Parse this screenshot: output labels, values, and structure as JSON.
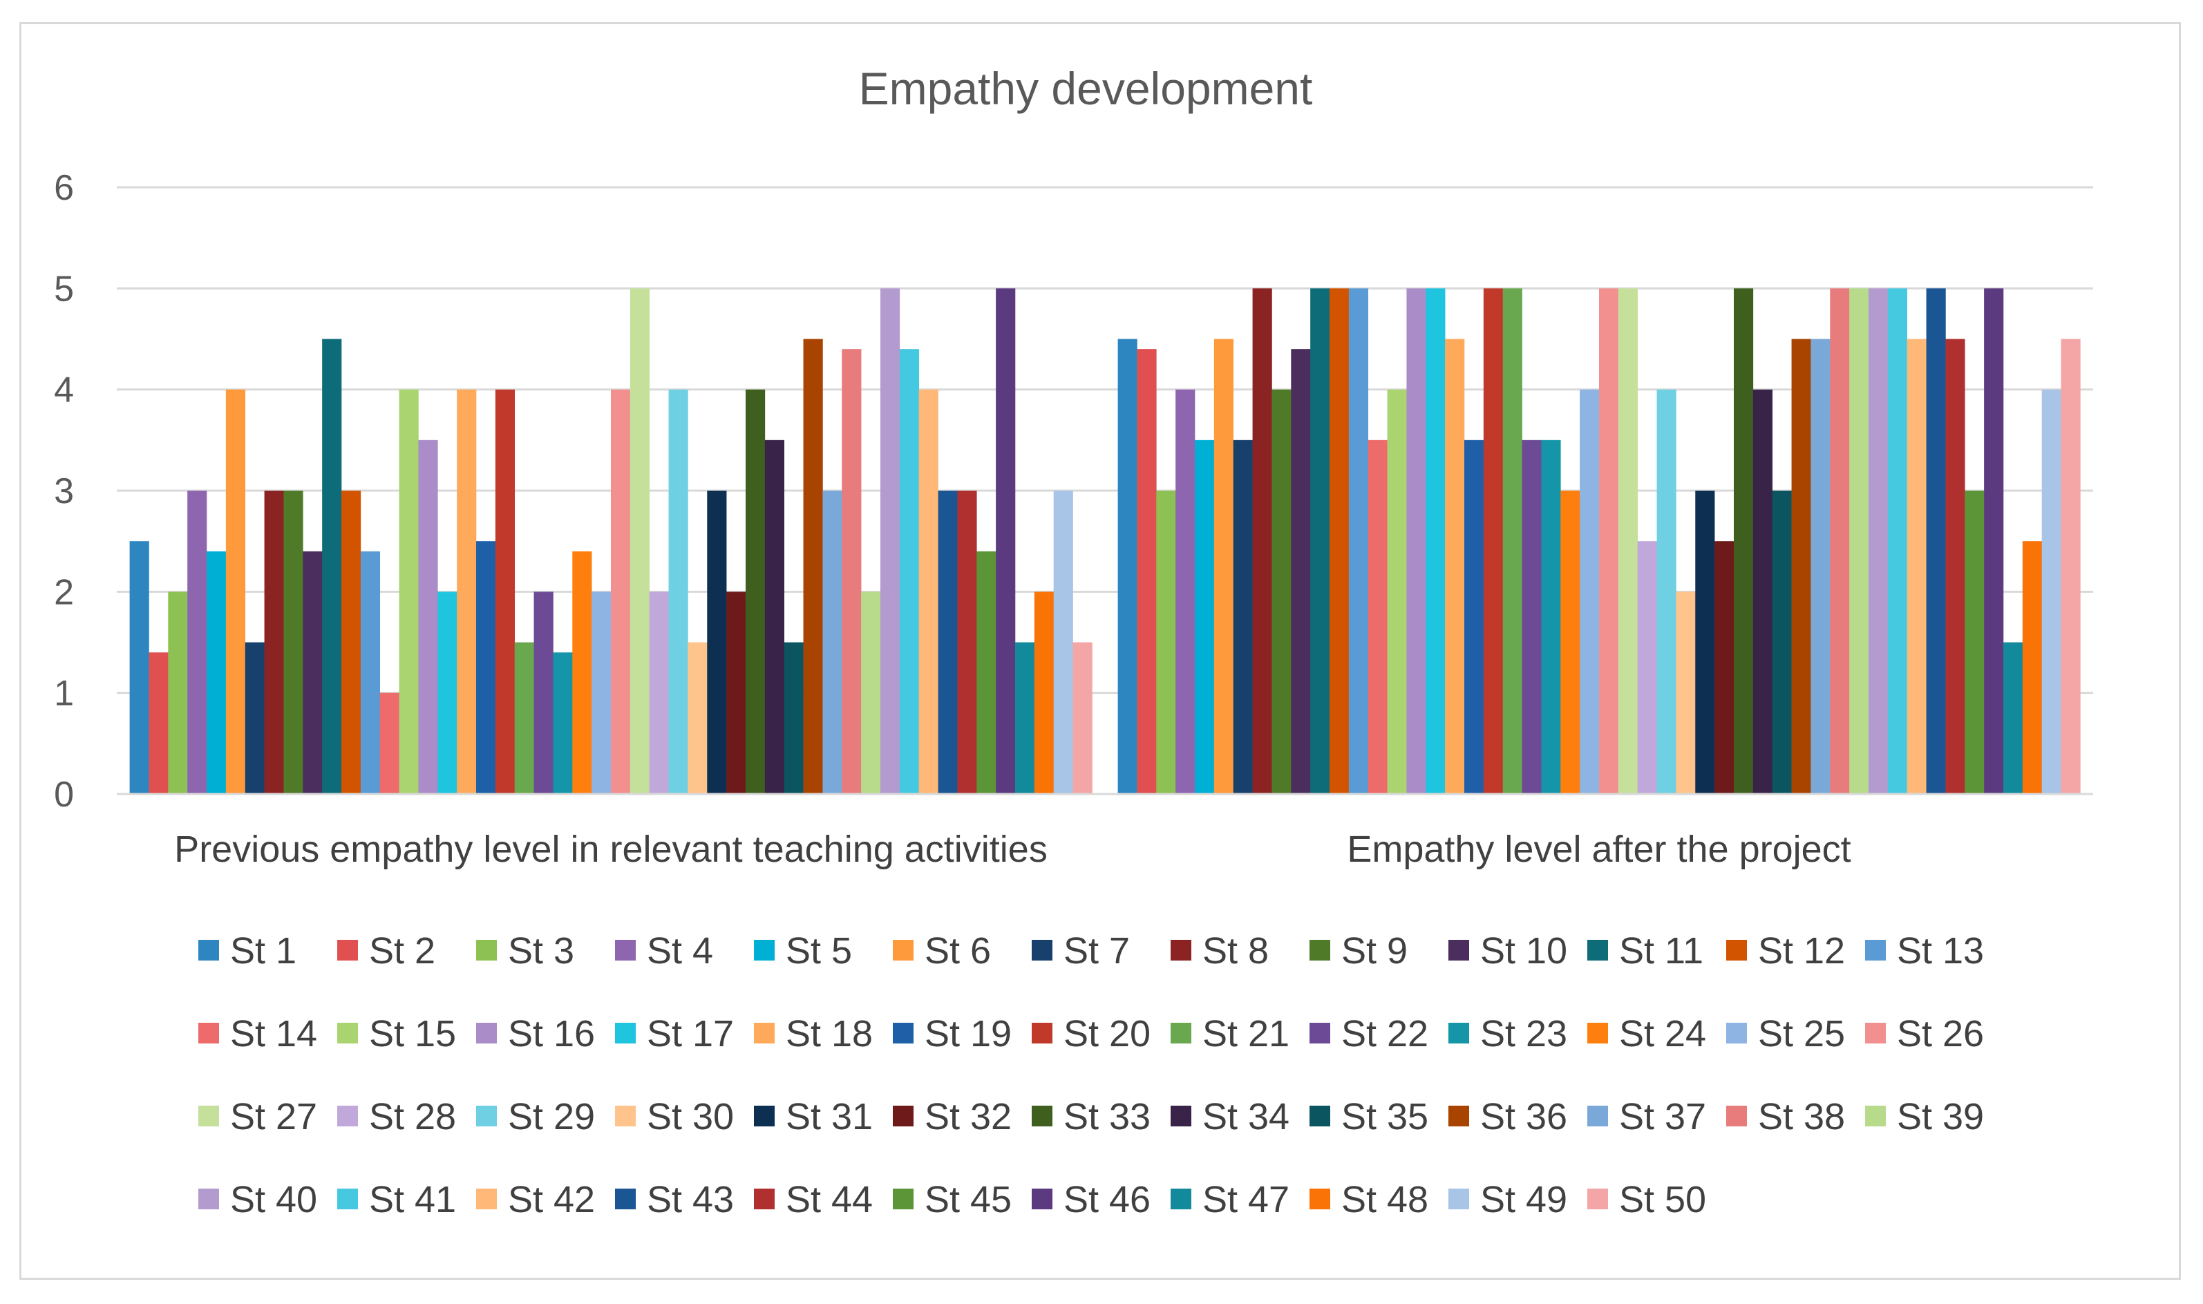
{
  "chart_data": {
    "type": "bar",
    "title": "Empathy development",
    "xlabel": "",
    "ylabel": "",
    "ylim": [
      0,
      6
    ],
    "yticks": [
      0,
      1,
      2,
      3,
      4,
      5,
      6
    ],
    "grid": true,
    "legend_position": "bottom",
    "categories": [
      "Previous empathy level in relevant teaching activities",
      "Empathy level after the project"
    ],
    "series": [
      {
        "name": "St 1",
        "color": "#2E86C1",
        "values": [
          2.5,
          4.5
        ]
      },
      {
        "name": "St 2",
        "color": "#E05050",
        "values": [
          1.4,
          4.4
        ]
      },
      {
        "name": "St 3",
        "color": "#8DC153",
        "values": [
          2,
          3
        ]
      },
      {
        "name": "St 4",
        "color": "#8E66B0",
        "values": [
          3,
          4
        ]
      },
      {
        "name": "St 5",
        "color": "#00B0D4",
        "values": [
          2.4,
          3.5
        ]
      },
      {
        "name": "St 6",
        "color": "#FF9A3C",
        "values": [
          4,
          4.5
        ]
      },
      {
        "name": "St 7",
        "color": "#17406D",
        "values": [
          1.5,
          3.5
        ]
      },
      {
        "name": "St 8",
        "color": "#8B2323",
        "values": [
          3,
          5
        ]
      },
      {
        "name": "St 9",
        "color": "#4F7A28",
        "values": [
          3,
          4
        ]
      },
      {
        "name": "St 10",
        "color": "#4B2E5E",
        "values": [
          2.4,
          4.4
        ]
      },
      {
        "name": "St 11",
        "color": "#0E6B78",
        "values": [
          4.5,
          5
        ]
      },
      {
        "name": "St 12",
        "color": "#D35400",
        "values": [
          3,
          5
        ]
      },
      {
        "name": "St 13",
        "color": "#5B9BD5",
        "values": [
          2.4,
          5
        ]
      },
      {
        "name": "St 14",
        "color": "#EE6B6B",
        "values": [
          1,
          3.5
        ]
      },
      {
        "name": "St 15",
        "color": "#A9D46F",
        "values": [
          4,
          4
        ]
      },
      {
        "name": "St 16",
        "color": "#AA8CC8",
        "values": [
          3.5,
          5
        ]
      },
      {
        "name": "St 17",
        "color": "#1FC5DE",
        "values": [
          2,
          5
        ]
      },
      {
        "name": "St 18",
        "color": "#FFAA5A",
        "values": [
          4,
          4.5
        ]
      },
      {
        "name": "St 19",
        "color": "#1F5FA8",
        "values": [
          2.5,
          3.5
        ]
      },
      {
        "name": "St 20",
        "color": "#C0392B",
        "values": [
          4,
          5
        ]
      },
      {
        "name": "St 21",
        "color": "#6AA84F",
        "values": [
          1.5,
          5
        ]
      },
      {
        "name": "St 22",
        "color": "#6C4A96",
        "values": [
          2,
          3.5
        ]
      },
      {
        "name": "St 23",
        "color": "#1496A8",
        "values": [
          1.4,
          3.5
        ]
      },
      {
        "name": "St 24",
        "color": "#FF7F0E",
        "values": [
          2.4,
          3
        ]
      },
      {
        "name": "St 25",
        "color": "#8DB4E2",
        "values": [
          2,
          4
        ]
      },
      {
        "name": "St 26",
        "color": "#F29090",
        "values": [
          4,
          5
        ]
      },
      {
        "name": "St 27",
        "color": "#C4E09A",
        "values": [
          5,
          5
        ]
      },
      {
        "name": "St 28",
        "color": "#C1A8DA",
        "values": [
          2,
          2.5
        ]
      },
      {
        "name": "St 29",
        "color": "#6FD0E4",
        "values": [
          4,
          4
        ]
      },
      {
        "name": "St 30",
        "color": "#FFC48C",
        "values": [
          1.5,
          2
        ]
      },
      {
        "name": "St 31",
        "color": "#0D2F52",
        "values": [
          3,
          3
        ]
      },
      {
        "name": "St 32",
        "color": "#6E1A1A",
        "values": [
          2,
          2.5
        ]
      },
      {
        "name": "St 33",
        "color": "#3E5F1E",
        "values": [
          4,
          5
        ]
      },
      {
        "name": "St 34",
        "color": "#3A2348",
        "values": [
          3.5,
          4
        ]
      },
      {
        "name": "St 35",
        "color": "#0A5560",
        "values": [
          1.5,
          3
        ]
      },
      {
        "name": "St 36",
        "color": "#A84300",
        "values": [
          4.5,
          4.5
        ]
      },
      {
        "name": "St 37",
        "color": "#7AA8D8",
        "values": [
          3,
          4.5
        ]
      },
      {
        "name": "St 38",
        "color": "#E87C7C",
        "values": [
          4.4,
          5
        ]
      },
      {
        "name": "St 39",
        "color": "#B7DA8B",
        "values": [
          2,
          5
        ]
      },
      {
        "name": "St 40",
        "color": "#B39BD0",
        "values": [
          5,
          5
        ]
      },
      {
        "name": "St 41",
        "color": "#45C9E0",
        "values": [
          4.4,
          5
        ]
      },
      {
        "name": "St 42",
        "color": "#FFB878",
        "values": [
          4,
          4.5
        ]
      },
      {
        "name": "St 43",
        "color": "#1A5594",
        "values": [
          3,
          5
        ]
      },
      {
        "name": "St 44",
        "color": "#B03030",
        "values": [
          3,
          4.5
        ]
      },
      {
        "name": "St 45",
        "color": "#5C9438",
        "values": [
          2.4,
          3
        ]
      },
      {
        "name": "St 46",
        "color": "#5B3A80",
        "values": [
          5,
          5
        ]
      },
      {
        "name": "St 47",
        "color": "#128A9C",
        "values": [
          1.5,
          1.5
        ]
      },
      {
        "name": "St 48",
        "color": "#F97306",
        "values": [
          2,
          2.5
        ]
      },
      {
        "name": "St 49",
        "color": "#A8C4E6",
        "values": [
          3,
          4
        ]
      },
      {
        "name": "St 50",
        "color": "#F4A6A6",
        "values": [
          1.5,
          4.5
        ]
      }
    ]
  }
}
